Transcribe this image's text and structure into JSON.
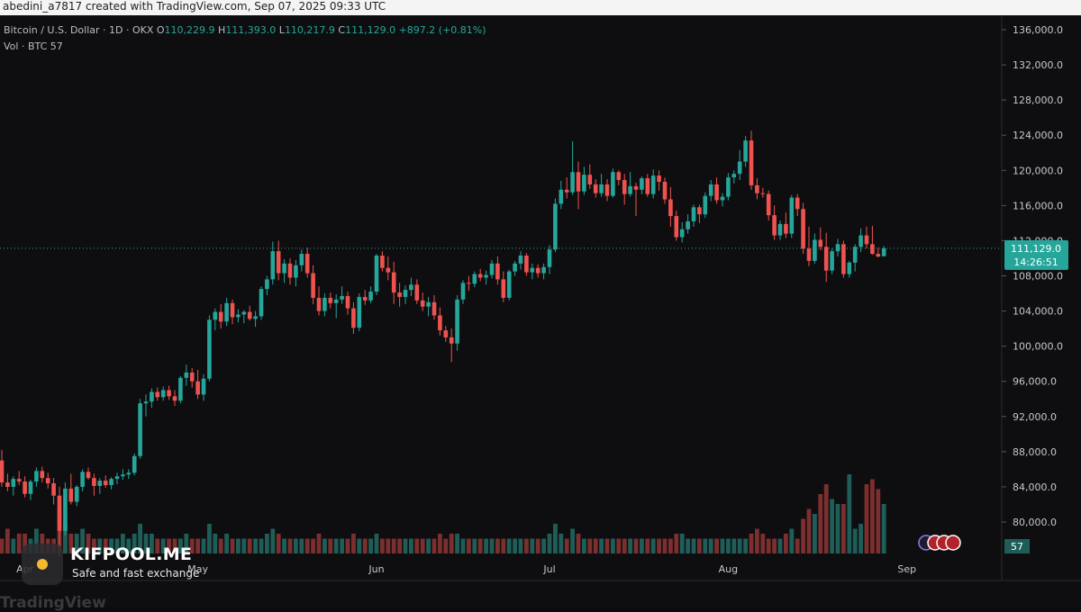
{
  "header": {
    "credit": "abedini_a7817 created with TradingView.com, Sep 07, 2025 09:33 UTC"
  },
  "legend": {
    "symbol": "Bitcoin / U.S. Dollar · 1D · OKX",
    "o_label": "O",
    "o": "110,229.9",
    "h_label": "H",
    "h": "111,393.0",
    "l_label": "L",
    "l": "110,217.9",
    "c_label": "C",
    "c": "111,129.0",
    "change": "+897.2 (+0.81%)",
    "vol_label": "Vol · BTC",
    "vol": "57"
  },
  "price_tag": {
    "price": "111,129.0",
    "countdown": "14:26:51"
  },
  "volume_tag": "57",
  "brand": {
    "title": "KIFPOOL.ME",
    "subtitle": "Safe and fast exchange"
  },
  "watermark": "TradingView",
  "colors": {
    "up": "#26a69a",
    "down": "#ef5350",
    "up_vol": "#1f5e58",
    "down_vol": "#7c2f2f",
    "background": "#0e0e10",
    "tag": "#26a69a"
  },
  "chart_data": {
    "type": "candlestick",
    "ylim": [
      78000,
      137000
    ],
    "y_ticks": [
      136000,
      132000,
      128000,
      124000,
      120000,
      116000,
      112000,
      108000,
      104000,
      100000,
      96000,
      92000,
      88000,
      84000,
      80000
    ],
    "y_tick_labels": [
      "136,000.0",
      "132,000.0",
      "128,000.0",
      "124,000.0",
      "120,000.0",
      "116,000.0",
      "112,000.0",
      "108,000.0",
      "104,000.0",
      "100,000.0",
      "96,000.0",
      "92,000.0",
      "88,000.0",
      "84,000.0",
      "80,000.0"
    ],
    "x_labels": [
      {
        "label": "Apr",
        "index": 4
      },
      {
        "label": "May",
        "index": 34
      },
      {
        "label": "Jun",
        "index": 65
      },
      {
        "label": "Jul",
        "index": 95
      },
      {
        "label": "Aug",
        "index": 126
      },
      {
        "label": "Sep",
        "index": 157
      }
    ],
    "last_price": 111129.0,
    "candles": [
      [
        87000,
        88200,
        84000,
        84500
      ],
      [
        84500,
        85500,
        83500,
        84000
      ],
      [
        84000,
        85200,
        83000,
        84900
      ],
      [
        84900,
        85800,
        84200,
        84600
      ],
      [
        84600,
        85200,
        82800,
        83200
      ],
      [
        83200,
        84800,
        82500,
        84600
      ],
      [
        84600,
        86200,
        84000,
        85800
      ],
      [
        85800,
        86300,
        84500,
        85000
      ],
      [
        85000,
        85600,
        83800,
        84400
      ],
      [
        84400,
        85000,
        82000,
        83000
      ],
      [
        83000,
        84000,
        76000,
        79000
      ],
      [
        79000,
        84500,
        78500,
        83800
      ],
      [
        83800,
        85500,
        82000,
        82300
      ],
      [
        82300,
        84200,
        81800,
        84000
      ],
      [
        84000,
        86000,
        83500,
        85700
      ],
      [
        85700,
        86200,
        84800,
        85000
      ],
      [
        85000,
        85500,
        83000,
        84100
      ],
      [
        84100,
        85000,
        83200,
        84700
      ],
      [
        84700,
        85300,
        83900,
        84200
      ],
      [
        84200,
        85100,
        83700,
        84900
      ],
      [
        84900,
        85600,
        84300,
        85200
      ],
      [
        85200,
        86000,
        84800,
        85400
      ],
      [
        85400,
        86000,
        84900,
        85600
      ],
      [
        85600,
        87800,
        85300,
        87500
      ],
      [
        87500,
        94000,
        87200,
        93500
      ],
      [
        93500,
        94500,
        92000,
        93700
      ],
      [
        93700,
        95200,
        93000,
        94800
      ],
      [
        94800,
        95300,
        93800,
        94200
      ],
      [
        94200,
        95400,
        93800,
        95000
      ],
      [
        95000,
        95500,
        93900,
        94300
      ],
      [
        94300,
        95000,
        93200,
        93800
      ],
      [
        93800,
        96600,
        93500,
        96400
      ],
      [
        96400,
        97900,
        95500,
        97000
      ],
      [
        97000,
        97500,
        95300,
        96000
      ],
      [
        96000,
        97300,
        94000,
        94500
      ],
      [
        94500,
        96800,
        93800,
        96300
      ],
      [
        96300,
        103500,
        96000,
        103000
      ],
      [
        103000,
        104300,
        101800,
        103900
      ],
      [
        103900,
        104800,
        102000,
        102800
      ],
      [
        102800,
        105500,
        102300,
        104900
      ],
      [
        104900,
        105300,
        102500,
        103300
      ],
      [
        103300,
        104200,
        102700,
        103600
      ],
      [
        103600,
        104100,
        102600,
        103900
      ],
      [
        103900,
        104600,
        102900,
        103100
      ],
      [
        103100,
        104000,
        102200,
        103400
      ],
      [
        103400,
        106800,
        103000,
        106500
      ],
      [
        106500,
        108000,
        105800,
        107600
      ],
      [
        107600,
        111900,
        107000,
        110800
      ],
      [
        110800,
        112000,
        107500,
        108300
      ],
      [
        108300,
        109900,
        107200,
        109400
      ],
      [
        109400,
        110000,
        107000,
        107800
      ],
      [
        107800,
        109800,
        106800,
        109200
      ],
      [
        109200,
        111000,
        108500,
        110500
      ],
      [
        110500,
        111200,
        107800,
        108300
      ],
      [
        108300,
        109200,
        104800,
        105500
      ],
      [
        105500,
        106800,
        103500,
        104000
      ],
      [
        104000,
        106000,
        103400,
        105500
      ],
      [
        105500,
        106100,
        104300,
        104900
      ],
      [
        104900,
        105900,
        103200,
        105300
      ],
      [
        105300,
        106800,
        104800,
        105700
      ],
      [
        105700,
        106200,
        103600,
        104300
      ],
      [
        104300,
        105000,
        101400,
        102100
      ],
      [
        102100,
        106000,
        101700,
        105600
      ],
      [
        105600,
        106400,
        104700,
        105200
      ],
      [
        105200,
        106800,
        104900,
        106200
      ],
      [
        106200,
        110500,
        105800,
        110300
      ],
      [
        110300,
        110800,
        108500,
        108900
      ],
      [
        108900,
        110200,
        107500,
        108400
      ],
      [
        108400,
        109600,
        104800,
        106100
      ],
      [
        106100,
        107200,
        104500,
        105600
      ],
      [
        105600,
        106900,
        104800,
        106400
      ],
      [
        106400,
        107800,
        105700,
        107000
      ],
      [
        107000,
        107600,
        104800,
        105200
      ],
      [
        105200,
        106100,
        104000,
        104500
      ],
      [
        104500,
        105600,
        103400,
        105000
      ],
      [
        105000,
        105800,
        103000,
        103500
      ],
      [
        103500,
        104400,
        101200,
        101800
      ],
      [
        101800,
        102300,
        100500,
        101000
      ],
      [
        101000,
        102000,
        98200,
        100300
      ],
      [
        100300,
        105800,
        99500,
        105300
      ],
      [
        105300,
        107500,
        104800,
        107200
      ],
      [
        107200,
        108000,
        106300,
        107100
      ],
      [
        107100,
        108500,
        106700,
        108200
      ],
      [
        108200,
        108800,
        107400,
        107800
      ],
      [
        107800,
        108600,
        107000,
        108100
      ],
      [
        108100,
        109800,
        107700,
        109400
      ],
      [
        109400,
        110200,
        107000,
        107600
      ],
      [
        107600,
        108500,
        105000,
        105500
      ],
      [
        105500,
        108700,
        105200,
        108500
      ],
      [
        108500,
        109700,
        108000,
        109400
      ],
      [
        109400,
        110800,
        108700,
        110300
      ],
      [
        110300,
        110600,
        108000,
        108400
      ],
      [
        108400,
        109400,
        107600,
        108900
      ],
      [
        108900,
        109300,
        107800,
        108300
      ],
      [
        108300,
        109400,
        107600,
        109000
      ],
      [
        109000,
        111500,
        108200,
        111000
      ],
      [
        111000,
        116800,
        110700,
        116200
      ],
      [
        116200,
        118800,
        115600,
        117800
      ],
      [
        117800,
        119200,
        116800,
        117500
      ],
      [
        117500,
        123300,
        117200,
        119800
      ],
      [
        119800,
        121000,
        115600,
        117600
      ],
      [
        117600,
        120400,
        117200,
        119500
      ],
      [
        119500,
        120700,
        117900,
        118400
      ],
      [
        118400,
        119000,
        116900,
        117400
      ],
      [
        117400,
        119600,
        117000,
        118400
      ],
      [
        118400,
        119000,
        116500,
        117100
      ],
      [
        117100,
        120200,
        116900,
        119800
      ],
      [
        119800,
        120000,
        118300,
        118900
      ],
      [
        118900,
        119600,
        116100,
        117300
      ],
      [
        117300,
        119800,
        117000,
        118200
      ],
      [
        118200,
        118600,
        114800,
        117800
      ],
      [
        117800,
        119300,
        117300,
        119100
      ],
      [
        119100,
        119600,
        117000,
        117300
      ],
      [
        117300,
        120100,
        116800,
        119400
      ],
      [
        119400,
        120000,
        117700,
        118700
      ],
      [
        118700,
        119200,
        116200,
        116700
      ],
      [
        116700,
        118100,
        113600,
        114800
      ],
      [
        114800,
        115400,
        112000,
        112400
      ],
      [
        112400,
        114100,
        111800,
        113300
      ],
      [
        113300,
        115000,
        112800,
        114200
      ],
      [
        114200,
        116100,
        113600,
        115800
      ],
      [
        115800,
        116100,
        114000,
        115000
      ],
      [
        115000,
        117500,
        114600,
        117100
      ],
      [
        117100,
        118900,
        116500,
        118400
      ],
      [
        118400,
        119200,
        116200,
        116600
      ],
      [
        116600,
        117400,
        115900,
        117000
      ],
      [
        117000,
        119700,
        116600,
        119200
      ],
      [
        119200,
        120000,
        118500,
        119600
      ],
      [
        119600,
        122300,
        118900,
        121000
      ],
      [
        121000,
        123900,
        120400,
        123400
      ],
      [
        123400,
        124500,
        117800,
        118300
      ],
      [
        118300,
        119100,
        116700,
        117400
      ],
      [
        117400,
        118000,
        116900,
        117300
      ],
      [
        117300,
        117700,
        114300,
        114900
      ],
      [
        114900,
        116000,
        112100,
        112600
      ],
      [
        112600,
        114300,
        112100,
        113900
      ],
      [
        113900,
        115200,
        112300,
        112800
      ],
      [
        112800,
        117200,
        112300,
        116900
      ],
      [
        116900,
        117300,
        114800,
        115600
      ],
      [
        115600,
        116300,
        110500,
        111100
      ],
      [
        111100,
        113600,
        109100,
        109700
      ],
      [
        109700,
        112800,
        109400,
        112100
      ],
      [
        112100,
        113500,
        110900,
        111300
      ],
      [
        111300,
        112900,
        107300,
        108600
      ],
      [
        108600,
        111100,
        108200,
        110800
      ],
      [
        110800,
        112200,
        110200,
        111600
      ],
      [
        111600,
        112000,
        107800,
        108200
      ],
      [
        108200,
        109700,
        107800,
        109500
      ],
      [
        109500,
        111600,
        108500,
        111300
      ],
      [
        111300,
        113400,
        110700,
        112600
      ],
      [
        112600,
        113600,
        111100,
        111600
      ],
      [
        111600,
        113700,
        110400,
        110500
      ],
      [
        110500,
        111200,
        110100,
        110200
      ],
      [
        110229.9,
        111393,
        110217.9,
        111129
      ]
    ],
    "volumes": [
      3,
      5,
      3,
      4,
      4,
      3,
      5,
      4,
      3,
      3,
      9,
      6,
      4,
      4,
      5,
      4,
      3,
      3,
      3,
      3,
      3,
      4,
      3,
      4,
      6,
      4,
      4,
      3,
      3,
      3,
      3,
      3,
      4,
      3,
      3,
      3,
      6,
      4,
      3,
      4,
      3,
      3,
      3,
      3,
      3,
      3,
      4,
      5,
      4,
      3,
      3,
      3,
      3,
      3,
      3,
      4,
      3,
      3,
      3,
      3,
      3,
      4,
      3,
      3,
      3,
      4,
      3,
      3,
      3,
      3,
      3,
      3,
      3,
      3,
      3,
      3,
      4,
      3,
      4,
      4,
      3,
      3,
      3,
      3,
      3,
      3,
      3,
      3,
      3,
      3,
      3,
      3,
      3,
      3,
      3,
      4,
      6,
      4,
      3,
      5,
      4,
      3,
      3,
      3,
      3,
      3,
      3,
      3,
      3,
      3,
      3,
      3,
      3,
      3,
      3,
      3,
      3,
      4,
      4,
      3,
      3,
      3,
      3,
      3,
      3,
      3,
      3,
      3,
      3,
      3,
      4,
      5,
      4,
      3,
      3,
      3,
      4,
      5,
      3,
      7,
      9,
      8,
      12,
      14,
      11,
      10,
      10,
      16,
      5,
      6,
      14,
      15,
      13,
      10,
      17,
      1
    ]
  }
}
